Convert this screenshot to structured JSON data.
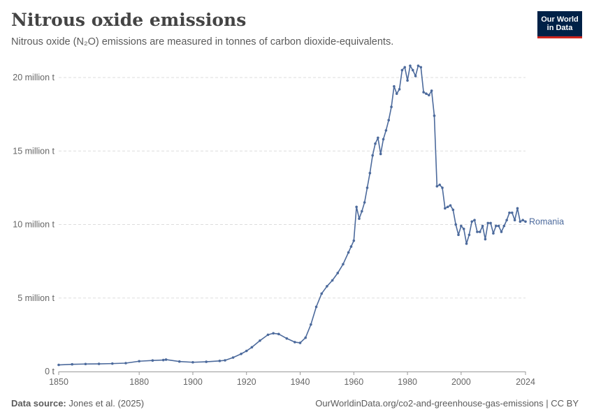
{
  "header": {
    "title": "Nitrous oxide emissions",
    "subtitle": "Nitrous oxide (N₂O) emissions are measured in tonnes of carbon dioxide-equivalents.",
    "logo_line1": "Our World",
    "logo_line2": "in Data"
  },
  "footer": {
    "source_label": "Data source:",
    "source_text": " Jones et al. (2025)",
    "url": "OurWorldinData.org/co2-and-greenhouse-gas-emissions | CC BY"
  },
  "colors": {
    "line": "#4c6a9c",
    "grid": "#dddddd",
    "logo_bg": "#002147",
    "logo_accent": "#ce261e"
  },
  "chart_data": {
    "type": "line",
    "title": "Nitrous oxide emissions",
    "xlabel": "",
    "ylabel": "",
    "xlim": [
      1850,
      2024
    ],
    "ylim": [
      0,
      20000000
    ],
    "y_ticks": [
      {
        "value": 0,
        "label": "0 t"
      },
      {
        "value": 5000000,
        "label": "5 million t"
      },
      {
        "value": 10000000,
        "label": "10 million t"
      },
      {
        "value": 15000000,
        "label": "15 million t"
      },
      {
        "value": 20000000,
        "label": "20 million t"
      }
    ],
    "x_ticks": [
      {
        "value": 1850,
        "label": "1850"
      },
      {
        "value": 1880,
        "label": "1880"
      },
      {
        "value": 1900,
        "label": "1900"
      },
      {
        "value": 1920,
        "label": "1920"
      },
      {
        "value": 1940,
        "label": "1940"
      },
      {
        "value": 1960,
        "label": "1960"
      },
      {
        "value": 1980,
        "label": "1980"
      },
      {
        "value": 2000,
        "label": "2000"
      },
      {
        "value": 2024,
        "label": "2024"
      }
    ],
    "grid": "horizontal dashed",
    "series": [
      {
        "name": "Romania",
        "x": [
          1850,
          1855,
          1860,
          1865,
          1870,
          1875,
          1880,
          1885,
          1889,
          1890,
          1895,
          1900,
          1905,
          1910,
          1912,
          1915,
          1918,
          1920,
          1922,
          1925,
          1928,
          1930,
          1932,
          1935,
          1938,
          1940,
          1942,
          1944,
          1946,
          1948,
          1950,
          1952,
          1954,
          1956,
          1958,
          1959,
          1960,
          1961,
          1962,
          1963,
          1964,
          1965,
          1966,
          1967,
          1968,
          1969,
          1970,
          1971,
          1972,
          1973,
          1974,
          1975,
          1976,
          1977,
          1978,
          1979,
          1980,
          1981,
          1982,
          1983,
          1984,
          1985,
          1986,
          1987,
          1988,
          1989,
          1990,
          1991,
          1992,
          1993,
          1994,
          1995,
          1996,
          1997,
          1998,
          1999,
          2000,
          2001,
          2002,
          2003,
          2004,
          2005,
          2006,
          2007,
          2008,
          2009,
          2010,
          2011,
          2012,
          2013,
          2014,
          2015,
          2016,
          2017,
          2018,
          2019,
          2020,
          2021,
          2022,
          2023,
          2024
        ],
        "values": [
          450000,
          490000,
          510000,
          520000,
          540000,
          570000,
          700000,
          750000,
          780000,
          810000,
          680000,
          630000,
          660000,
          720000,
          760000,
          950000,
          1200000,
          1400000,
          1650000,
          2100000,
          2500000,
          2600000,
          2550000,
          2250000,
          2000000,
          1950000,
          2300000,
          3200000,
          4400000,
          5300000,
          5800000,
          6200000,
          6700000,
          7300000,
          8100000,
          8500000,
          8900000,
          11200000,
          10400000,
          10900000,
          11500000,
          12500000,
          13500000,
          14700000,
          15500000,
          15900000,
          14800000,
          15800000,
          16400000,
          17100000,
          18000000,
          19400000,
          18900000,
          19200000,
          20500000,
          20700000,
          19800000,
          20800000,
          20500000,
          20100000,
          20800000,
          20700000,
          19000000,
          18900000,
          18800000,
          19100000,
          17400000,
          12600000,
          12700000,
          12500000,
          11100000,
          11200000,
          11300000,
          11000000,
          10000000,
          9300000,
          9900000,
          9700000,
          8700000,
          9300000,
          10200000,
          10300000,
          9500000,
          9500000,
          9900000,
          9000000,
          10100000,
          10100000,
          9400000,
          9900000,
          9900000,
          9500000,
          9900000,
          10300000,
          10800000,
          10800000,
          10300000,
          11100000,
          10200000,
          10300000,
          10200000
        ]
      }
    ]
  }
}
